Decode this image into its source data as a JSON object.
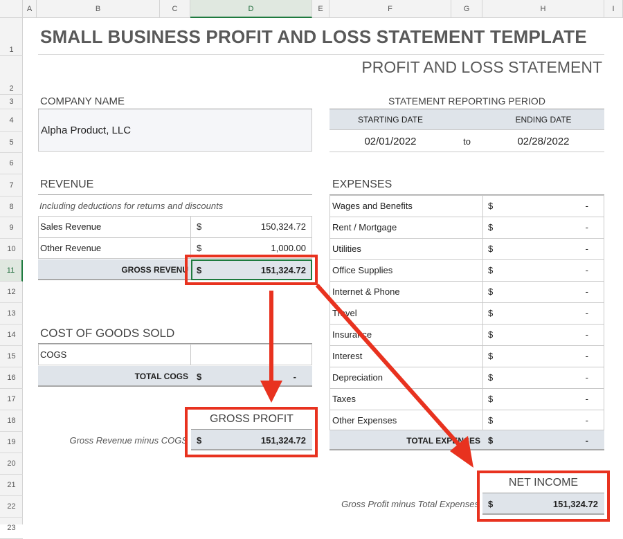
{
  "columns": [
    "A",
    "B",
    "C",
    "D",
    "E",
    "F",
    "G",
    "H",
    "I"
  ],
  "rows": [
    "1",
    "2",
    "3",
    "4",
    "5",
    "6",
    "7",
    "8",
    "9",
    "10",
    "11",
    "12",
    "13",
    "14",
    "15",
    "16",
    "17",
    "18",
    "19",
    "20",
    "21",
    "22",
    "23"
  ],
  "title": "SMALL BUSINESS PROFIT AND LOSS STATEMENT TEMPLATE",
  "subtitle": "PROFIT AND LOSS STATEMENT",
  "company": {
    "label": "COMPANY NAME",
    "value": "Alpha Product, LLC"
  },
  "period": {
    "label": "STATEMENT REPORTING PERIOD",
    "start_label": "STARTING DATE",
    "end_label": "ENDING DATE",
    "start": "02/01/2022",
    "to": "to",
    "end": "02/28/2022"
  },
  "revenue": {
    "label": "REVENUE",
    "note": "Including deductions for returns and discounts",
    "items": [
      {
        "name": "Sales Revenue",
        "cur": "$",
        "amount": "150,324.72"
      },
      {
        "name": "Other Revenue",
        "cur": "$",
        "amount": "1,000.00"
      }
    ],
    "total_label": "GROSS REVENU",
    "total_cur": "$",
    "total": "151,324.72"
  },
  "cogs": {
    "label": "COST OF GOODS SOLD",
    "item": "COGS",
    "total_label": "TOTAL COGS",
    "total_cur": "$",
    "total": "-"
  },
  "gross_profit": {
    "label": "GROSS PROFIT",
    "note": "Gross Revenue minus COGS",
    "cur": "$",
    "value": "151,324.72"
  },
  "expenses": {
    "label": "EXPENSES",
    "items": [
      {
        "name": "Wages and Benefits",
        "cur": "$",
        "amount": "-"
      },
      {
        "name": "Rent / Mortgage",
        "cur": "$",
        "amount": "-"
      },
      {
        "name": "Utilities",
        "cur": "$",
        "amount": "-"
      },
      {
        "name": "Office Supplies",
        "cur": "$",
        "amount": "-"
      },
      {
        "name": "Internet & Phone",
        "cur": "$",
        "amount": "-"
      },
      {
        "name": "Travel",
        "cur": "$",
        "amount": "-"
      },
      {
        "name": "Insurance",
        "cur": "$",
        "amount": "-"
      },
      {
        "name": "Interest",
        "cur": "$",
        "amount": "-"
      },
      {
        "name": "Depreciation",
        "cur": "$",
        "amount": "-"
      },
      {
        "name": "Taxes",
        "cur": "$",
        "amount": "-"
      },
      {
        "name": "Other Expenses",
        "cur": "$",
        "amount": "-"
      }
    ],
    "total_label": "TOTAL EXPENSES",
    "total_cur": "$",
    "total": "-"
  },
  "net_income": {
    "label": "NET INCOME",
    "note": "Gross Profit minus Total Expenses",
    "cur": "$",
    "value": "151,324.72"
  },
  "colors": {
    "annotation_red": "#e8321f",
    "shade": "#dfe4ea",
    "selection_green": "#1e7a3e"
  }
}
